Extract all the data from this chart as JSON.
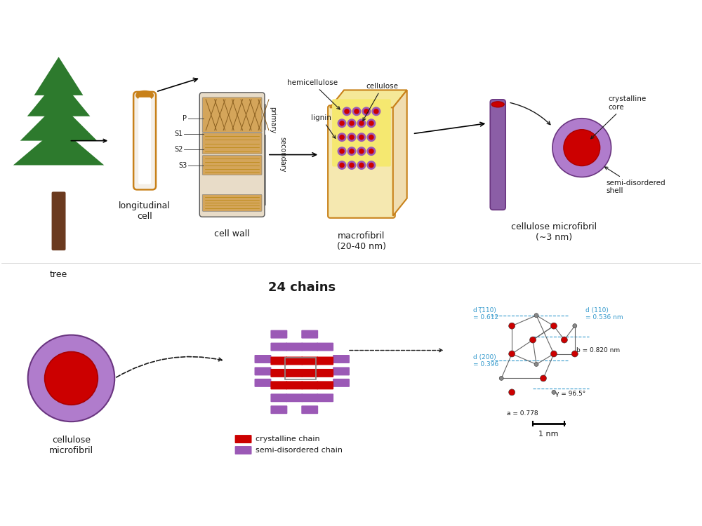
{
  "bg_color": "#ffffff",
  "tree_color": "#2d7a2d",
  "trunk_color": "#6b3a1f",
  "cell_fill": "#f5f0e8",
  "cell_border": "#c8811a",
  "cell_wall_fill": "#d4a55a",
  "cell_wall_dark": "#8b6020",
  "macrofibril_outer": "#c8811a",
  "macrofibril_fill": "#f5e8b0",
  "macrofibril_inner_fill": "#f0e090",
  "hemicellulose_color": "#9b59b6",
  "cellulose_core_color": "#cc0000",
  "lignin_fill": "#f5e898",
  "microfibril_rod_color": "#8b5ea6",
  "microfibril_shell_color": "#b07ccc",
  "crystalline_core_color": "#cc0000",
  "chain_red": "#cc0000",
  "chain_purple": "#9b59b6",
  "arrow_color": "#1a1a1a",
  "text_color": "#1a1a1a",
  "blue_annotation": "#3399cc",
  "label_tree": "tree",
  "label_cell": "longitudinal\ncell",
  "label_wall": "cell wall",
  "label_macro": "macrofibril\n(20-40 nm)",
  "label_micro": "cellulose microfibril\n(∼3 nm)",
  "label_cellulose_micro2": "cellulose\nmicrofibril",
  "label_24chains": "24 chains",
  "label_crystalline": "crystalline chain",
  "label_semi": "semi-disordered chain",
  "label_cryst_core": "crystalline\ncore",
  "label_semi_shell": "semi-disordered\nshell",
  "label_hemi": "hemicellulose",
  "label_cellulose": "cellulose",
  "label_lignin": "lignin",
  "label_primary": "primary",
  "label_secondary": "secondary",
  "d110bar": "d (̅110)\n= 0.612",
  "d110": "d (110)\n= 0.536 nm",
  "d200": "d (200)\n= 0.396",
  "b_val": "b = 0.820 nm",
  "gamma_val": "γ = 96.5°",
  "a_val": "a = 0.778",
  "scale_bar": "1 nm"
}
